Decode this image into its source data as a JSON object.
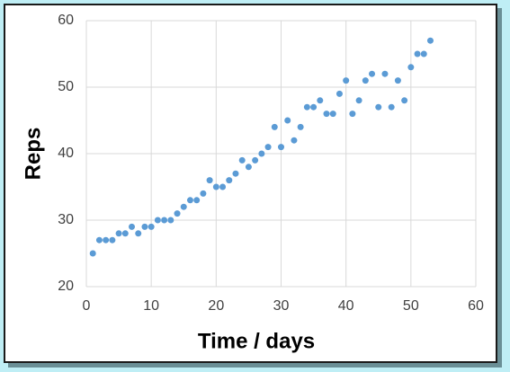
{
  "chart_data": {
    "type": "scatter",
    "x_label": "Time / days",
    "y_label": "Reps",
    "x": [
      1,
      2,
      3,
      4,
      5,
      6,
      7,
      8,
      9,
      10,
      11,
      12,
      13,
      14,
      15,
      16,
      17,
      18,
      19,
      20,
      21,
      22,
      23,
      24,
      25,
      26,
      27,
      28,
      29,
      30,
      31,
      32,
      33,
      34,
      35,
      36,
      37,
      38,
      39,
      40,
      41,
      42,
      43,
      44,
      45,
      46,
      47,
      48,
      49,
      50,
      51,
      52,
      53
    ],
    "series": [
      {
        "color": "#5b9bd5",
        "values": [
          25,
          27,
          27,
          27,
          28,
          28,
          29,
          28,
          29,
          29,
          30,
          30,
          30,
          31,
          32,
          33,
          33,
          34,
          36,
          35,
          35,
          36,
          37,
          39,
          38,
          39,
          40,
          41,
          44,
          41,
          45,
          42,
          44,
          47,
          47,
          48,
          46,
          46,
          49,
          51,
          46,
          48,
          51,
          52,
          47,
          52,
          47,
          51,
          48,
          53,
          55,
          55,
          57
        ]
      }
    ],
    "xlim": [
      0,
      60
    ],
    "xticks": [
      0,
      10,
      20,
      30,
      40,
      50,
      60
    ],
    "ylim": [
      20,
      60
    ],
    "yticks": [
      20,
      30,
      40,
      50,
      60
    ],
    "grid": true
  }
}
